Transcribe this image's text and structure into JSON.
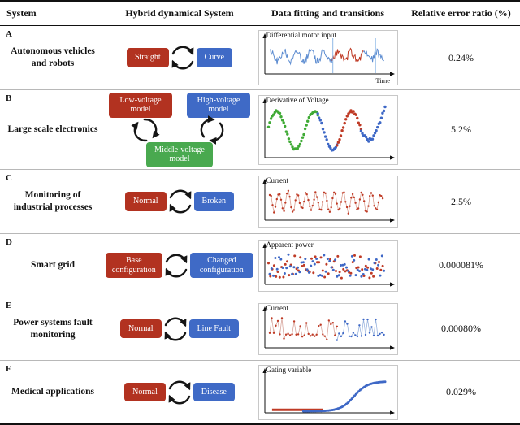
{
  "header": {
    "col_system": "System",
    "col_hybrid": "Hybrid dynamical System",
    "col_fitting": "Data fitting and transitions",
    "col_error": "Relative error ratio (%)"
  },
  "colors": {
    "red": "#b23220",
    "blue": "#3f6ac6",
    "green": "#49a94f"
  },
  "rows": [
    {
      "letter": "A",
      "system": "Autonomous vehicles and robots",
      "error": "0.24%",
      "diagram": {
        "type": "two",
        "left": "Straight",
        "right": "Curve"
      },
      "chart": {
        "type": "line",
        "title": "Differential motor input",
        "xlabel": "Time",
        "baseline": "center",
        "series": [
          {
            "style": "line",
            "color": "#5b8bd0",
            "width": 1,
            "wave": "sine",
            "cycles": 9,
            "amp": 0.3,
            "noise": 0.22,
            "from": 0.02,
            "to": 0.54,
            "n": 85,
            "seed": 7
          },
          {
            "style": "line",
            "color": "#bf3a25",
            "width": 1,
            "wave": "sine",
            "cycles": 9,
            "amp": 0.26,
            "noise": 0.26,
            "from": 0.54,
            "to": 0.8,
            "n": 42,
            "seed": 11
          },
          {
            "style": "line",
            "color": "#5b8bd0",
            "width": 1,
            "wave": "sine",
            "cycles": 9,
            "amp": 0.24,
            "noise": 0.22,
            "from": 0.8,
            "to": 0.97,
            "n": 28,
            "seed": 5
          },
          {
            "style": "vlines",
            "color": "#8fb8e6",
            "xs": [
              0.545,
              0.9
            ]
          }
        ]
      }
    },
    {
      "letter": "B",
      "system": "Large scale electronics",
      "error": "5.2%",
      "diagram": {
        "type": "three",
        "topLeft": "Low-voltage model",
        "topRight": "High-voltage model",
        "bottom": "Middle-voltage model"
      },
      "chart": {
        "type": "scatter",
        "title": "Derivative of Voltage",
        "baseline": "center",
        "series": [
          {
            "style": "dots",
            "r": 1.7,
            "color": "#3faa35",
            "wave": "sine",
            "cycles": 3.2,
            "amp": 0.75,
            "noise": 0.04,
            "from": 0.01,
            "to": 0.42,
            "n": 40,
            "seed": 3
          },
          {
            "style": "dots",
            "r": 1.7,
            "color": "#3e68c6",
            "wave": "sine",
            "cycles": 3.2,
            "amp": 0.75,
            "noise": 0.04,
            "from": 0.42,
            "to": 0.58,
            "n": 16,
            "seed": 4
          },
          {
            "style": "dots",
            "r": 1.7,
            "color": "#bf3a25",
            "wave": "sine",
            "cycles": 3.2,
            "amp": 0.75,
            "noise": 0.04,
            "from": 0.58,
            "to": 0.78,
            "n": 20,
            "seed": 5
          },
          {
            "style": "dots",
            "r": 1.7,
            "color": "#3e68c6",
            "wave": "sine",
            "cycles": 3.2,
            "amp": 0.55,
            "noise": 0.06,
            "trend": 0.45,
            "from": 0.78,
            "to": 0.98,
            "n": 20,
            "seed": 6
          }
        ]
      }
    },
    {
      "letter": "C",
      "system": "Monitoring of industrial processes",
      "error": "2.5%",
      "diagram": {
        "type": "two",
        "left": "Normal",
        "right": "Broken"
      },
      "chart": {
        "type": "line",
        "title": "Current",
        "baseline": "center",
        "series": [
          {
            "style": "line-dots",
            "r": 1.2,
            "color": "#bf3a25",
            "lineColor": "#dba193",
            "width": 0.8,
            "wave": "sine",
            "cycles": 13,
            "amp": 0.55,
            "noise": 0.16,
            "from": 0.02,
            "to": 0.96,
            "n": 80,
            "seed": 9
          }
        ]
      }
    },
    {
      "letter": "D",
      "system": "Smart grid",
      "error": "0.000081%",
      "diagram": {
        "type": "two",
        "left": "Base configuration",
        "right": "Changed configuration"
      },
      "chart": {
        "type": "scatter",
        "title": "Apparent power",
        "baseline": "center",
        "series": [
          {
            "style": "dots",
            "r": 1.5,
            "color": "#bf3a25",
            "wave": "flat",
            "noise": 0.72,
            "from": 0.01,
            "to": 0.96,
            "n": 62,
            "seed": 21
          },
          {
            "style": "dots",
            "r": 1.5,
            "color": "#3e68c6",
            "wave": "flat",
            "noise": 0.72,
            "from": 0.02,
            "to": 0.97,
            "n": 62,
            "seed": 33
          }
        ]
      }
    },
    {
      "letter": "E",
      "system": "Power systems fault monitoring",
      "error": "0.00080%",
      "diagram": {
        "type": "two",
        "left": "Normal",
        "right": "Line Fault"
      },
      "chart": {
        "type": "line",
        "title": "Current",
        "baseline": "center",
        "series": [
          {
            "style": "line-dots",
            "r": 1.2,
            "color": "#bf3a25",
            "lineColor": "#d8a79e",
            "width": 0.8,
            "wave": "spikes",
            "amp": 1,
            "base": -0.3,
            "from": 0.02,
            "to": 0.58,
            "n": 34,
            "seed": 13
          },
          {
            "style": "line-dots",
            "r": 1.2,
            "color": "#3e68c6",
            "lineColor": "#9ab4de",
            "width": 0.8,
            "wave": "spikes",
            "amp": 1,
            "base": -0.3,
            "from": 0.58,
            "to": 0.97,
            "n": 24,
            "seed": 17
          }
        ]
      }
    },
    {
      "letter": "F",
      "system": "Medical applications",
      "error": "0.029%",
      "diagram": {
        "type": "two",
        "left": "Normal",
        "right": "Disease"
      },
      "chart": {
        "type": "line",
        "title": "Gating variable",
        "baseline": "bottom",
        "series": [
          {
            "style": "line",
            "color": "#bf3a25",
            "width": 3,
            "wave": "flat",
            "base": 0.04,
            "from": 0.04,
            "to": 0.46,
            "n": 8,
            "seed": 2
          },
          {
            "style": "dots",
            "r": 1.5,
            "color": "#3e68c6",
            "wave": "sigmoid",
            "amp": 0.85,
            "k": 12,
            "mid": 0.62,
            "from": 0.3,
            "to": 0.98,
            "n": 60,
            "seed": 8
          }
        ]
      }
    }
  ]
}
